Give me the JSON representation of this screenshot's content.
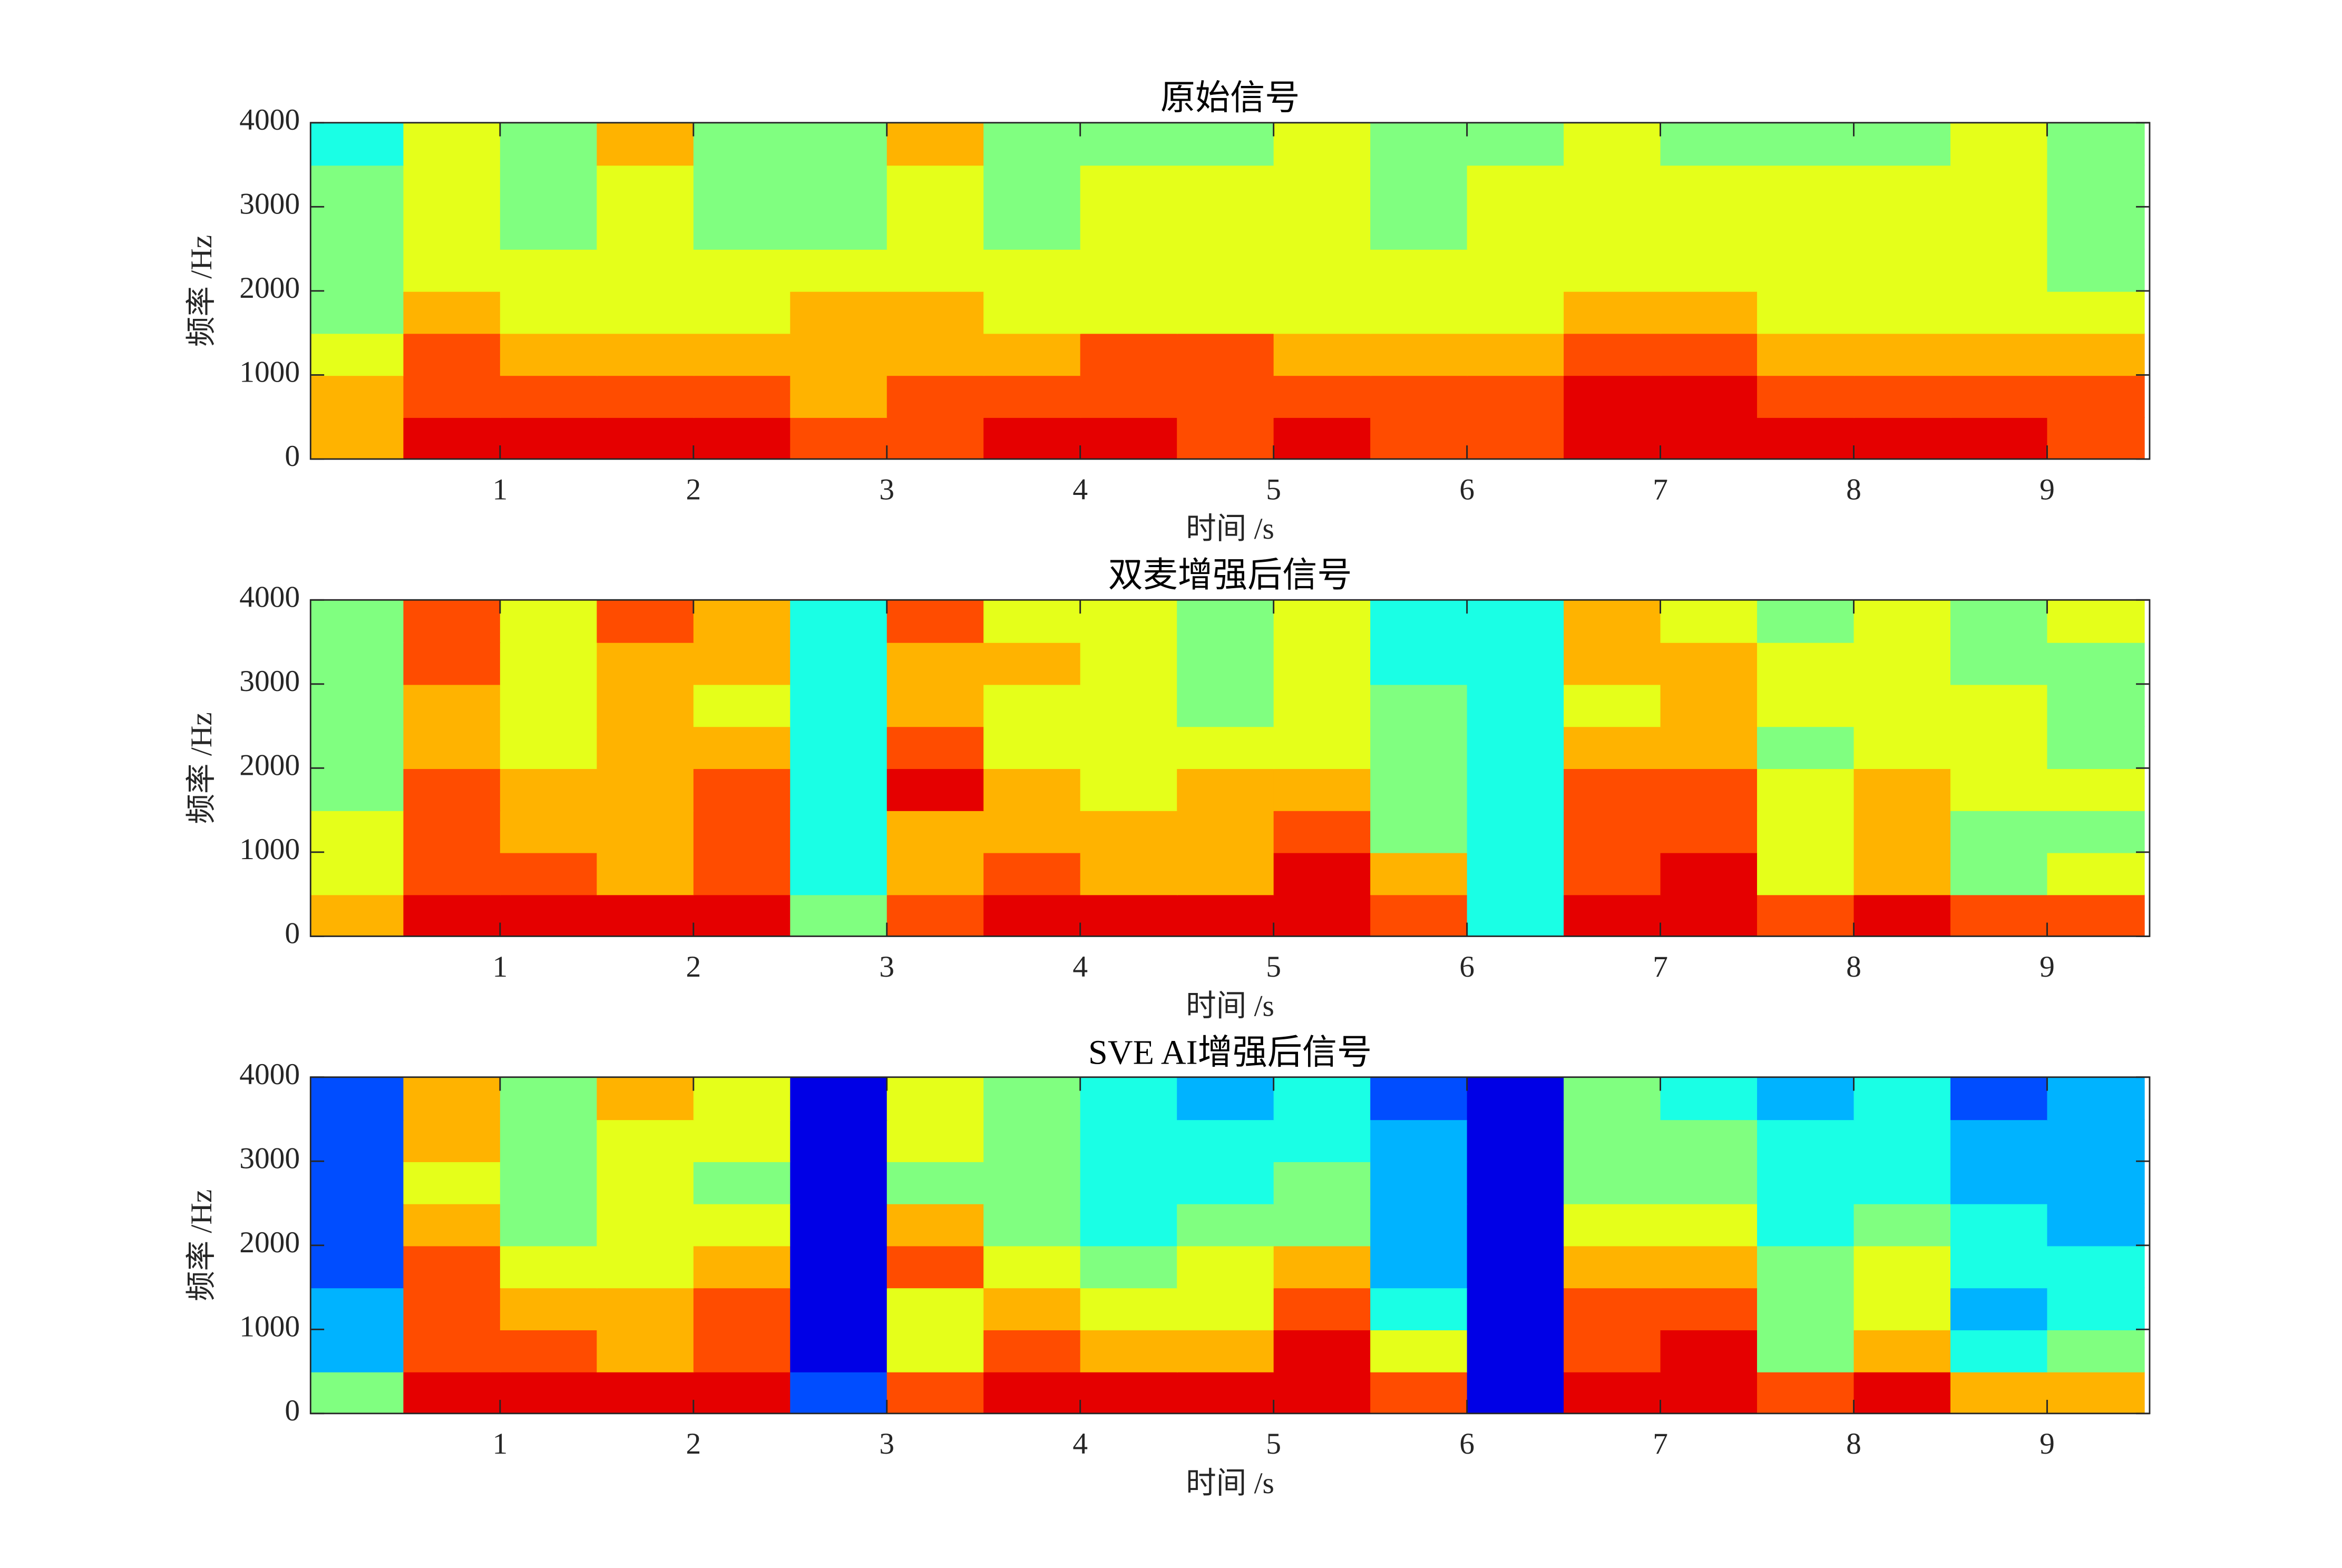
{
  "chart_data": [
    {
      "type": "heatmap",
      "title": "原始信号",
      "xlabel": "时间 /s",
      "ylabel": "频率 /Hz",
      "colormap": "jet",
      "clim": [
        0,
        10
      ],
      "xlim": [
        0.02,
        9.53
      ],
      "ylim": [
        0,
        4000
      ],
      "xticks": [
        1,
        2,
        3,
        4,
        5,
        6,
        7,
        8,
        9
      ],
      "yticks": [
        0,
        1000,
        2000,
        3000,
        4000
      ],
      "xbins": [
        0,
        0.5,
        1,
        1.5,
        2,
        2.5,
        3,
        3.5,
        4,
        4.5,
        5,
        5.5,
        6,
        6.5,
        7,
        7.5,
        8,
        8.5,
        9,
        9.5
      ],
      "ybins": [
        0,
        500,
        1000,
        1500,
        2000,
        2500,
        3000,
        3500,
        4000
      ],
      "z": [
        [
          7,
          9,
          9,
          9,
          9,
          8,
          8,
          9,
          9,
          8,
          9,
          8,
          8,
          9,
          9,
          9,
          9,
          9,
          8
        ],
        [
          7,
          8,
          8,
          8,
          8,
          7,
          8,
          8,
          8,
          8,
          8,
          8,
          8,
          9,
          9,
          8,
          8,
          8,
          8
        ],
        [
          6,
          8,
          7,
          7,
          7,
          7,
          7,
          7,
          8,
          8,
          7,
          7,
          7,
          8,
          8,
          7,
          7,
          7,
          7
        ],
        [
          5,
          7,
          6,
          6,
          6,
          7,
          7,
          6,
          6,
          6,
          6,
          6,
          6,
          7,
          7,
          6,
          6,
          6,
          6
        ],
        [
          5,
          6,
          6,
          6,
          6,
          6,
          6,
          6,
          6,
          6,
          6,
          6,
          6,
          6,
          6,
          6,
          6,
          6,
          5
        ],
        [
          5,
          6,
          5,
          6,
          5,
          5,
          6,
          5,
          6,
          6,
          6,
          5,
          6,
          6,
          6,
          6,
          6,
          6,
          5
        ],
        [
          5,
          6,
          5,
          6,
          5,
          5,
          6,
          5,
          6,
          6,
          6,
          5,
          6,
          6,
          6,
          6,
          6,
          6,
          5
        ],
        [
          4,
          6,
          5,
          7,
          5,
          5,
          7,
          5,
          5,
          5,
          6,
          5,
          5,
          6,
          5,
          5,
          5,
          6,
          5
        ]
      ]
    },
    {
      "type": "heatmap",
      "title": "双麦增强后信号",
      "xlabel": "时间 /s",
      "ylabel": "频率 /Hz",
      "colormap": "jet",
      "clim": [
        0,
        10
      ],
      "xlim": [
        0.02,
        9.53
      ],
      "ylim": [
        0,
        4000
      ],
      "xticks": [
        1,
        2,
        3,
        4,
        5,
        6,
        7,
        8,
        9
      ],
      "yticks": [
        0,
        1000,
        2000,
        3000,
        4000
      ],
      "xbins": [
        0,
        0.5,
        1,
        1.5,
        2,
        2.5,
        3,
        3.5,
        4,
        4.5,
        5,
        5.5,
        6,
        6.5,
        7,
        7.5,
        8,
        8.5,
        9,
        9.5
      ],
      "ybins": [
        0,
        500,
        1000,
        1500,
        2000,
        2500,
        3000,
        3500,
        4000
      ],
      "z": [
        [
          7,
          9,
          9,
          9,
          9,
          5,
          8,
          9,
          9,
          9,
          9,
          8,
          4,
          9,
          9,
          8,
          9,
          8,
          8
        ],
        [
          6,
          8,
          8,
          7,
          8,
          4,
          7,
          8,
          7,
          7,
          9,
          7,
          4,
          8,
          9,
          6,
          7,
          5,
          6
        ],
        [
          6,
          8,
          7,
          7,
          8,
          4,
          7,
          7,
          7,
          7,
          8,
          5,
          4,
          8,
          8,
          6,
          7,
          5,
          5
        ],
        [
          5,
          8,
          7,
          7,
          8,
          4,
          9,
          7,
          6,
          7,
          7,
          5,
          4,
          8,
          8,
          6,
          7,
          6,
          6
        ],
        [
          5,
          7,
          6,
          7,
          7,
          4,
          8,
          6,
          6,
          6,
          6,
          5,
          4,
          7,
          7,
          5,
          6,
          6,
          5
        ],
        [
          5,
          7,
          6,
          7,
          6,
          4,
          7,
          6,
          6,
          5,
          6,
          5,
          4,
          6,
          7,
          6,
          6,
          6,
          5
        ],
        [
          5,
          8,
          6,
          7,
          7,
          4,
          7,
          7,
          6,
          5,
          6,
          4,
          4,
          7,
          7,
          6,
          6,
          5,
          5
        ],
        [
          5,
          8,
          6,
          8,
          7,
          4,
          8,
          6,
          6,
          5,
          6,
          4,
          4,
          7,
          6,
          5,
          6,
          5,
          6
        ]
      ]
    },
    {
      "type": "heatmap",
      "title": "SVE AI增强后信号",
      "xlabel": "时间 /s",
      "ylabel": "频率 /Hz",
      "colormap": "jet",
      "clim": [
        0,
        10
      ],
      "xlim": [
        0.02,
        9.53
      ],
      "ylim": [
        0,
        4000
      ],
      "xticks": [
        1,
        2,
        3,
        4,
        5,
        6,
        7,
        8,
        9
      ],
      "yticks": [
        0,
        1000,
        2000,
        3000,
        4000
      ],
      "xbins": [
        0,
        0.5,
        1,
        1.5,
        2,
        2.5,
        3,
        3.5,
        4,
        4.5,
        5,
        5.5,
        6,
        6.5,
        7,
        7.5,
        8,
        8.5,
        9,
        9.5
      ],
      "ybins": [
        0,
        500,
        1000,
        1500,
        2000,
        2500,
        3000,
        3500,
        4000
      ],
      "z": [
        [
          5,
          9,
          9,
          9,
          9,
          2,
          8,
          9,
          9,
          9,
          9,
          8,
          1,
          9,
          9,
          8,
          9,
          7,
          7
        ],
        [
          3,
          8,
          8,
          7,
          8,
          1,
          6,
          8,
          7,
          7,
          9,
          6,
          1,
          8,
          9,
          5,
          7,
          4,
          5
        ],
        [
          3,
          8,
          7,
          7,
          8,
          1,
          6,
          7,
          6,
          6,
          8,
          4,
          1,
          8,
          8,
          5,
          6,
          3,
          4
        ],
        [
          2,
          8,
          6,
          6,
          7,
          1,
          8,
          6,
          5,
          6,
          7,
          3,
          1,
          7,
          7,
          5,
          6,
          4,
          4
        ],
        [
          2,
          7,
          5,
          6,
          6,
          1,
          7,
          5,
          4,
          5,
          5,
          3,
          1,
          6,
          6,
          4,
          5,
          4,
          3
        ],
        [
          2,
          6,
          5,
          6,
          5,
          1,
          5,
          5,
          4,
          4,
          5,
          3,
          1,
          5,
          5,
          4,
          4,
          3,
          3
        ],
        [
          2,
          7,
          5,
          6,
          6,
          1,
          6,
          5,
          4,
          4,
          4,
          3,
          1,
          5,
          5,
          4,
          4,
          3,
          3
        ],
        [
          2,
          7,
          5,
          7,
          6,
          1,
          6,
          5,
          4,
          3,
          4,
          2,
          1,
          5,
          4,
          3,
          4,
          2,
          3
        ]
      ]
    }
  ]
}
